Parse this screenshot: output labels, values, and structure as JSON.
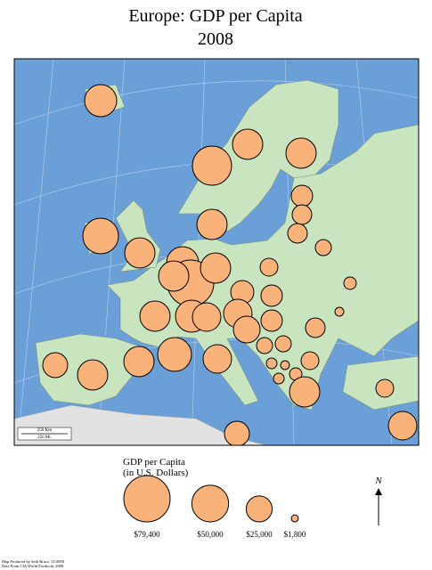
{
  "map_data": {
    "title": "Europe: GDP per Capita",
    "subtitle": "2008",
    "circle_color": "#f9b27a",
    "circles": [
      38000,
      56800,
      33900,
      33900,
      16900,
      14200,
      14200,
      33900,
      47000,
      33900,
      38000,
      79300,
      33900,
      33900,
      11700,
      9500,
      5750,
      33900,
      38000,
      30000,
      19800,
      16900,
      16900,
      30000,
      26400,
      14200,
      2900,
      9500,
      9500,
      4200,
      2900,
      4200,
      11700,
      5750,
      23000,
      33900,
      33900,
      42400,
      30000,
      33900,
      11700,
      30000,
      23000
    ],
    "legend": {
      "title": "GDP per Capita",
      "subtitle": "(in U.S. Dollars)",
      "values": [
        {
          "value": 79400,
          "label": "$79,400"
        },
        {
          "value": 50000,
          "label": "$50,000"
        },
        {
          "value": 25000,
          "label": "$25,000"
        },
        {
          "value": 1800,
          "label": "$1,800"
        }
      ]
    },
    "north": "N",
    "scale_bar": [
      "250 Km",
      "250 Mi."
    ],
    "credits": [
      "Map Produced by Seth Bruce, 11/2008",
      "Data From CIA World Factbook, 2008"
    ]
  }
}
